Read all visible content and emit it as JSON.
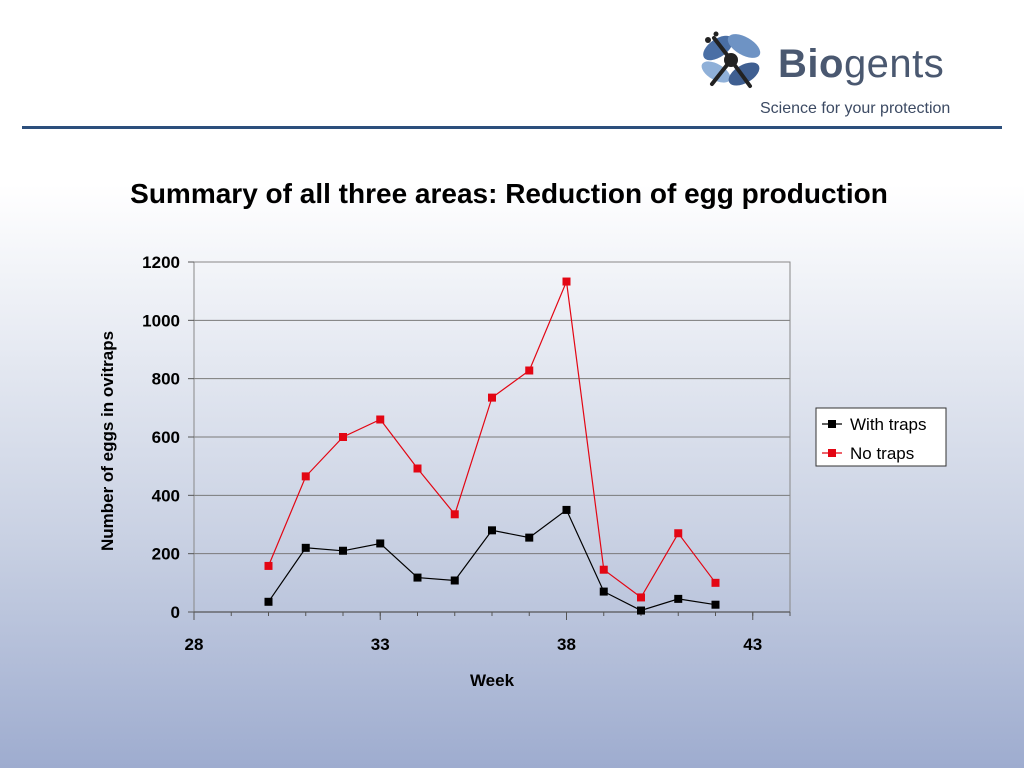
{
  "header": {
    "brand_bold": "Bio",
    "brand_regular": "gents",
    "tagline": "Science for your protection"
  },
  "slide": {
    "title": "Summary of all three areas: Reduction of egg production"
  },
  "colors": {
    "accent_rule": "#2c4f7c",
    "series_with_traps": "#000000",
    "series_no_traps": "#e30613"
  },
  "chart_data": {
    "type": "line",
    "xlabel": "Week",
    "ylabel": "Number of eggs in ovitraps",
    "xlim": [
      28,
      44
    ],
    "ylim": [
      0,
      1200
    ],
    "xticks": [
      28,
      33,
      38,
      43
    ],
    "yticks": [
      0,
      200,
      400,
      600,
      800,
      1000,
      1200
    ],
    "grid": "horizontal",
    "legend_position": "right",
    "x": [
      30,
      31,
      32,
      33,
      34,
      35,
      36,
      37,
      38,
      39,
      40,
      41,
      42
    ],
    "series": [
      {
        "name": "With traps",
        "color": "#000000",
        "values": [
          35,
          220,
          210,
          235,
          118,
          108,
          280,
          255,
          350,
          70,
          5,
          45,
          25
        ]
      },
      {
        "name": "No traps",
        "color": "#e30613",
        "values": [
          158,
          465,
          600,
          660,
          492,
          335,
          735,
          828,
          1133,
          145,
          50,
          270,
          100
        ]
      }
    ]
  }
}
